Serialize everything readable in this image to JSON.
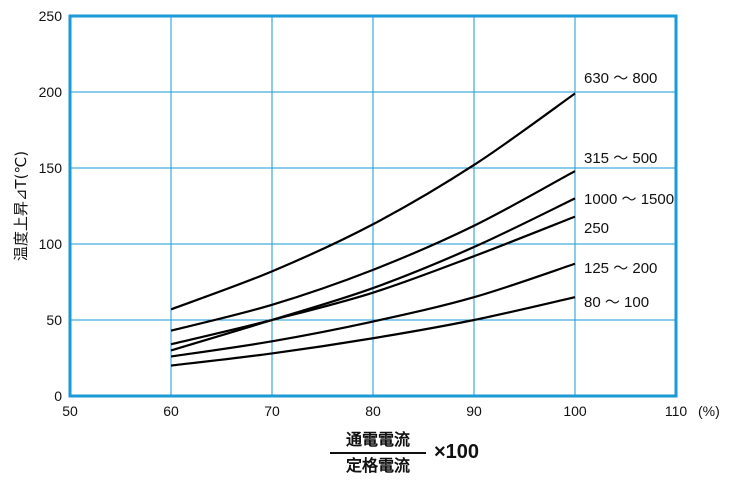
{
  "chart_data": {
    "type": "line",
    "xlim": [
      50,
      110
    ],
    "ylim": [
      0,
      250
    ],
    "x_ticks": [
      "50",
      "60",
      "70",
      "80",
      "90",
      "100",
      "110"
    ],
    "x_unit": "(%)",
    "y_ticks": [
      "0",
      "50",
      "100",
      "150",
      "200",
      "250"
    ],
    "ylabel": "温度上昇⊿T(℃)",
    "xlabel_numerator": "通電電流",
    "xlabel_denominator": "定格電流",
    "xlabel_multiplier": "×100",
    "grid": true,
    "colors": {
      "frame": "#1a9ad7",
      "grid": "#1a9ad7",
      "line": "#000000"
    },
    "x": [
      60,
      70,
      80,
      90,
      100
    ],
    "series": [
      {
        "name": "630 ～ 800",
        "values": [
          57,
          82,
          113,
          152,
          199
        ]
      },
      {
        "name": "315 ～ 500",
        "values": [
          43,
          60,
          83,
          112,
          148
        ]
      },
      {
        "name": "1000 ～ 1500",
        "values": [
          30,
          50,
          71,
          98,
          130
        ]
      },
      {
        "name": "250",
        "values": [
          34,
          50,
          68,
          92,
          118
        ]
      },
      {
        "name": "125 ～ 200",
        "values": [
          26,
          36,
          49,
          65,
          87
        ]
      },
      {
        "name": "80 ～ 100",
        "values": [
          20,
          28,
          38,
          50,
          65
        ]
      }
    ]
  }
}
